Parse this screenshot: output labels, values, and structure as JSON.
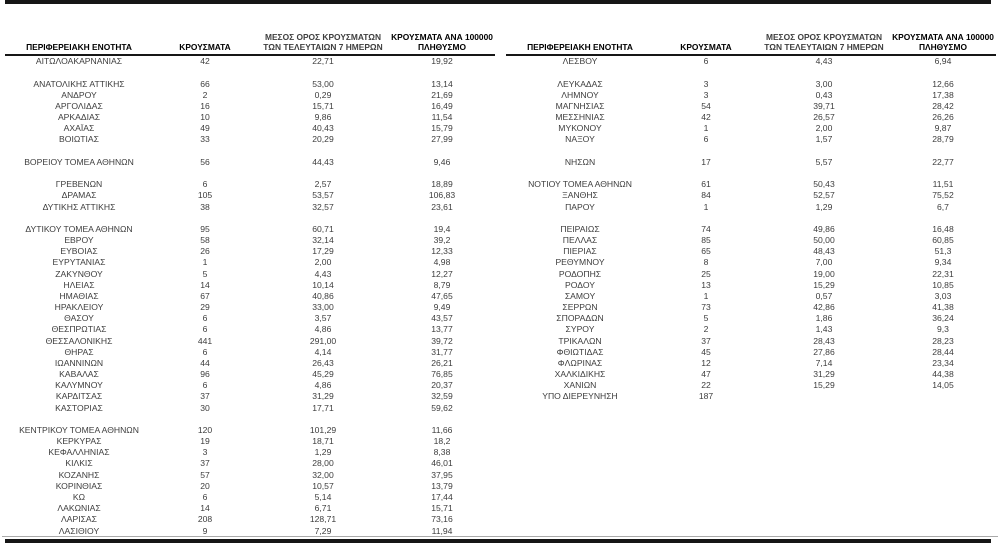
{
  "colors": {
    "ink": "#161616",
    "text": "#3d3d3d",
    "muted_header": "#3f3f3f"
  },
  "columns": {
    "region": "ΠΕΡΙΦΕΡΕΙΑΚΗ ΕΝΟΤΗΤΑ",
    "cases": "ΚΡΟΥΣΜΑΤΑ",
    "avg7days": "ΜΕΣΟΣ ΟΡΟΣ ΚΡΟΥΣΜΑΤΩΝ ΤΩΝ ΤΕΛΕΥΤΑΙΩΝ 7 ΗΜΕΡΩΝ",
    "per100k": "ΚΡΟΥΣΜΑΤΑ ΑΝΑ 100000 ΠΛΗΘΥΣΜΟ"
  },
  "tables": [
    {
      "rows": [
        [
          "ΑΙΤΩΛΟΑΚΑΡΝΑΝΙΑΣ",
          "42",
          "22,71",
          "19,92"
        ],
        null,
        [
          "ΑΝΑΤΟΛΙΚΗΣ ΑΤΤΙΚΗΣ",
          "66",
          "53,00",
          "13,14"
        ],
        [
          "ΑΝΔΡΟΥ",
          "2",
          "0,29",
          "21,69"
        ],
        [
          "ΑΡΓΟΛΙΔΑΣ",
          "16",
          "15,71",
          "16,49"
        ],
        [
          "ΑΡΚΑΔΙΑΣ",
          "10",
          "9,86",
          "11,54"
        ],
        [
          "ΑΧΑΪΑΣ",
          "49",
          "40,43",
          "15,79"
        ],
        [
          "ΒΟΙΩΤΙΑΣ",
          "33",
          "20,29",
          "27,99"
        ],
        null,
        [
          "ΒΟΡΕΙΟΥ ΤΟΜΕΑ ΑΘΗΝΩΝ",
          "56",
          "44,43",
          "9,46"
        ],
        null,
        [
          "ΓΡΕΒΕΝΩΝ",
          "6",
          "2,57",
          "18,89"
        ],
        [
          "ΔΡΑΜΑΣ",
          "105",
          "53,57",
          "106,83"
        ],
        [
          "ΔΥΤΙΚΗΣ ΑΤΤΙΚΗΣ",
          "38",
          "32,57",
          "23,61"
        ],
        null,
        [
          "ΔΥΤΙΚΟΥ ΤΟΜΕΑ ΑΘΗΝΩΝ",
          "95",
          "60,71",
          "19,4"
        ],
        [
          "ΕΒΡΟΥ",
          "58",
          "32,14",
          "39,2"
        ],
        [
          "ΕΥΒΟΙΑΣ",
          "26",
          "17,29",
          "12,33"
        ],
        [
          "ΕΥΡΥΤΑΝΙΑΣ",
          "1",
          "2,00",
          "4,98"
        ],
        [
          "ΖΑΚΥΝΘΟΥ",
          "5",
          "4,43",
          "12,27"
        ],
        [
          "ΗΛΕΙΑΣ",
          "14",
          "10,14",
          "8,79"
        ],
        [
          "ΗΜΑΘΙΑΣ",
          "67",
          "40,86",
          "47,65"
        ],
        [
          "ΗΡΑΚΛΕΙΟΥ",
          "29",
          "33,00",
          "9,49"
        ],
        [
          "ΘΑΣΟΥ",
          "6",
          "3,57",
          "43,57"
        ],
        [
          "ΘΕΣΠΡΩΤΙΑΣ",
          "6",
          "4,86",
          "13,77"
        ],
        [
          "ΘΕΣΣΑΛΟΝΙΚΗΣ",
          "441",
          "291,00",
          "39,72"
        ],
        [
          "ΘΗΡΑΣ",
          "6",
          "4,14",
          "31,77"
        ],
        [
          "ΙΩΑΝΝΙΝΩΝ",
          "44",
          "26,43",
          "26,21"
        ],
        [
          "ΚΑΒΑΛΑΣ",
          "96",
          "45,29",
          "76,85"
        ],
        [
          "ΚΑΛΥΜΝΟΥ",
          "6",
          "4,86",
          "20,37"
        ],
        [
          "ΚΑΡΔΙΤΣΑΣ",
          "37",
          "31,29",
          "32,59"
        ],
        [
          "ΚΑΣΤΟΡΙΑΣ",
          "30",
          "17,71",
          "59,62"
        ],
        null,
        [
          "ΚΕΝΤΡΙΚΟΥ ΤΟΜΕΑ ΑΘΗΝΩΝ",
          "120",
          "101,29",
          "11,66"
        ],
        [
          "ΚΕΡΚΥΡΑΣ",
          "19",
          "18,71",
          "18,2"
        ],
        [
          "ΚΕΦΑΛΛΗΝΙΑΣ",
          "3",
          "1,29",
          "8,38"
        ],
        [
          "ΚΙΛΚΙΣ",
          "37",
          "28,00",
          "46,01"
        ],
        [
          "ΚΟΖΑΝΗΣ",
          "57",
          "32,00",
          "37,95"
        ],
        [
          "ΚΟΡΙΝΘΙΑΣ",
          "20",
          "10,57",
          "13,79"
        ],
        [
          "ΚΩ",
          "6",
          "5,14",
          "17,44"
        ],
        [
          "ΛΑΚΩΝΙΑΣ",
          "14",
          "6,71",
          "15,71"
        ],
        [
          "ΛΑΡΙΣΑΣ",
          "208",
          "128,71",
          "73,16"
        ],
        [
          "ΛΑΣΙΘΙΟΥ",
          "9",
          "7,29",
          "11,94"
        ]
      ]
    },
    {
      "rows": [
        [
          "ΛΕΣΒΟΥ",
          "6",
          "4,43",
          "6,94"
        ],
        null,
        [
          "ΛΕΥΚΑΔΑΣ",
          "3",
          "3,00",
          "12,66"
        ],
        [
          "ΛΗΜΝΟΥ",
          "3",
          "0,43",
          "17,38"
        ],
        [
          "ΜΑΓΝΗΣΙΑΣ",
          "54",
          "39,71",
          "28,42"
        ],
        [
          "ΜΕΣΣΗΝΙΑΣ",
          "42",
          "26,57",
          "26,26"
        ],
        [
          "ΜΥΚΟΝΟΥ",
          "1",
          "2,00",
          "9,87"
        ],
        [
          "ΝΑΞΟΥ",
          "6",
          "1,57",
          "28,79"
        ],
        null,
        [
          "ΝΗΣΩΝ",
          "17",
          "5,57",
          "22,77"
        ],
        null,
        [
          "ΝΟΤΙΟΥ ΤΟΜΕΑ ΑΘΗΝΩΝ",
          "61",
          "50,43",
          "11,51"
        ],
        [
          "ΞΑΝΘΗΣ",
          "84",
          "52,57",
          "75,52"
        ],
        [
          "ΠΑΡΟΥ",
          "1",
          "1,29",
          "6,7"
        ],
        null,
        [
          "ΠΕΙΡΑΙΩΣ",
          "74",
          "49,86",
          "16,48"
        ],
        [
          "ΠΕΛΛΑΣ",
          "85",
          "50,00",
          "60,85"
        ],
        [
          "ΠΙΕΡΙΑΣ",
          "65",
          "48,43",
          "51,3"
        ],
        [
          "ΡΕΘΥΜΝΟΥ",
          "8",
          "7,00",
          "9,34"
        ],
        [
          "ΡΟΔΟΠΗΣ",
          "25",
          "19,00",
          "22,31"
        ],
        [
          "ΡΟΔΟΥ",
          "13",
          "15,29",
          "10,85"
        ],
        [
          "ΣΑΜΟΥ",
          "1",
          "0,57",
          "3,03"
        ],
        [
          "ΣΕΡΡΩΝ",
          "73",
          "42,86",
          "41,38"
        ],
        [
          "ΣΠΟΡΑΔΩΝ",
          "5",
          "1,86",
          "36,24"
        ],
        [
          "ΣΥΡΟΥ",
          "2",
          "1,43",
          "9,3"
        ],
        [
          "ΤΡΙΚΑΛΩΝ",
          "37",
          "28,43",
          "28,23"
        ],
        [
          "ΦΘΙΩΤΙΔΑΣ",
          "45",
          "27,86",
          "28,44"
        ],
        [
          "ΦΛΩΡΙΝΑΣ",
          "12",
          "7,14",
          "23,34"
        ],
        [
          "ΧΑΛΚΙΔΙΚΗΣ",
          "47",
          "31,29",
          "44,38"
        ],
        [
          "ΧΑΝΙΩΝ",
          "22",
          "15,29",
          "14,05"
        ],
        [
          "ΥΠΟ ΔΙΕΡΕΥΝΗΣΗ",
          "187",
          "",
          ""
        ]
      ]
    }
  ]
}
